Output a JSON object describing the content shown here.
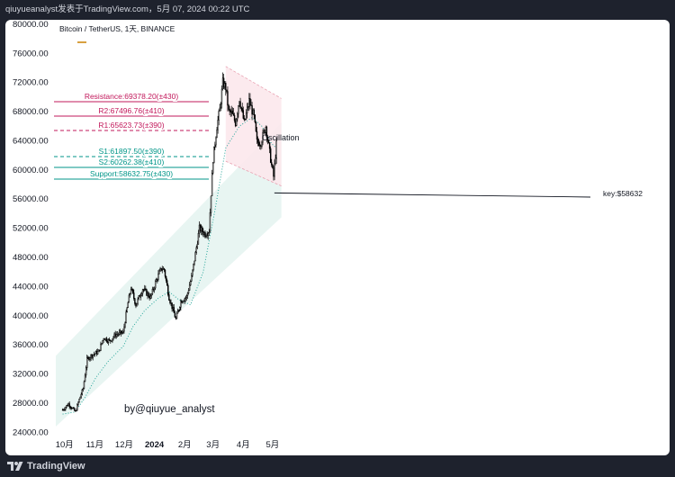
{
  "header": {
    "caption": "qiuyueanalyst发表于TradingView.com，5月 07, 2024 00:22 UTC"
  },
  "footer": {
    "brand": "TradingView",
    "brand_icon": "tradingview-logo-icon"
  },
  "colors": {
    "up": "#000000",
    "down": "#000000",
    "resistance": "#c2185b",
    "support": "#009688",
    "ma": "#26a69a",
    "channel_fill_red": "#fce8ec",
    "channel_fill_teal": "#e6f4f1"
  },
  "chart_data": {
    "type": "candlestick",
    "title": "Bitcoin / TetherUS, 1天, BINANCE",
    "watermark_text": "by@qiuyue_analyst",
    "annotation": "Oscillation",
    "key_label": "key:$58632",
    "y_axis": {
      "ticks": [
        "80000.00",
        "76000.00",
        "72000.00",
        "68000.00",
        "64000.00",
        "60000.00",
        "56000.00",
        "52000.00",
        "48000.00",
        "44000.00",
        "40000.00",
        "36000.00",
        "32000.00",
        "28000.00",
        "24000.00"
      ],
      "ylim": [
        23800,
        80600
      ]
    },
    "x_axis": {
      "ticks": [
        "10月",
        "11月",
        "12月",
        "2024",
        "2月",
        "3月",
        "4月",
        "5月"
      ]
    },
    "levels": [
      {
        "label": "Resistance:69378.20(±430)",
        "value": 69378,
        "style": "solid",
        "kind": "resistance"
      },
      {
        "label": "R2:67496.76(±410)",
        "value": 67497,
        "style": "solid",
        "kind": "resistance"
      },
      {
        "label": "R1:65623.73(±390)",
        "value": 65624,
        "style": "dashed",
        "kind": "resistance"
      },
      {
        "label": "S1:61897.50(±390)",
        "value": 61898,
        "style": "dashed",
        "kind": "support"
      },
      {
        "label": "S2:60262.38(±410)",
        "value": 60262,
        "style": "solid",
        "kind": "support"
      },
      {
        "label": "Support:58632.75(±430)",
        "value": 58633,
        "style": "solid",
        "kind": "support"
      }
    ],
    "series": [
      {
        "type": "close_path",
        "x": [
          "2023-09-29",
          "2023-10-05",
          "2023-10-12",
          "2023-10-16",
          "2023-10-20",
          "2023-10-24",
          "2023-10-28",
          "2023-11-05",
          "2023-11-10",
          "2023-11-16",
          "2023-11-22",
          "2023-11-30",
          "2023-12-05",
          "2023-12-08",
          "2023-12-13",
          "2023-12-20",
          "2023-12-28",
          "2024-01-03",
          "2024-01-08",
          "2024-01-11",
          "2024-01-16",
          "2024-01-23",
          "2024-01-28",
          "2024-02-03",
          "2024-02-08",
          "2024-02-12",
          "2024-02-16",
          "2024-02-22",
          "2024-02-26",
          "2024-02-28",
          "2024-03-01",
          "2024-03-05",
          "2024-03-08",
          "2024-03-11",
          "2024-03-14",
          "2024-03-17",
          "2024-03-20",
          "2024-03-24",
          "2024-03-28",
          "2024-04-02",
          "2024-04-07",
          "2024-04-12",
          "2024-04-15",
          "2024-04-19",
          "2024-04-24",
          "2024-04-30",
          "2024-05-02",
          "2024-05-05"
        ],
        "values": [
          27100,
          27900,
          26800,
          28500,
          30000,
          34000,
          34500,
          35100,
          37000,
          36500,
          37400,
          37700,
          41800,
          43800,
          41500,
          43700,
          42500,
          44900,
          46500,
          46300,
          42500,
          39500,
          42000,
          42600,
          45300,
          48500,
          52000,
          51200,
          51700,
          56800,
          61500,
          66000,
          68300,
          72000,
          71300,
          68000,
          67800,
          66500,
          69800,
          66400,
          69500,
          67200,
          63800,
          63800,
          66000,
          60600,
          59100,
          63500
        ]
      }
    ],
    "ma_series": {
      "x": [
        "2023-09-29",
        "2023-10-12",
        "2023-10-22",
        "2023-11-02",
        "2023-11-15",
        "2023-11-30",
        "2023-12-10",
        "2023-12-22",
        "2024-01-05",
        "2024-01-16",
        "2024-01-26",
        "2024-02-07",
        "2024-02-20",
        "2024-03-03",
        "2024-03-14",
        "2024-03-28",
        "2024-04-10",
        "2024-04-20",
        "2024-04-30",
        "2024-05-05"
      ],
      "values": [
        26500,
        26800,
        28800,
        31500,
        33800,
        35800,
        38500,
        40700,
        42400,
        43300,
        42200,
        41500,
        46000,
        54500,
        63000,
        66000,
        67200,
        66000,
        63600,
        63000
      ]
    },
    "key_point": {
      "x": "2024-05-01",
      "y": 56600
    }
  }
}
